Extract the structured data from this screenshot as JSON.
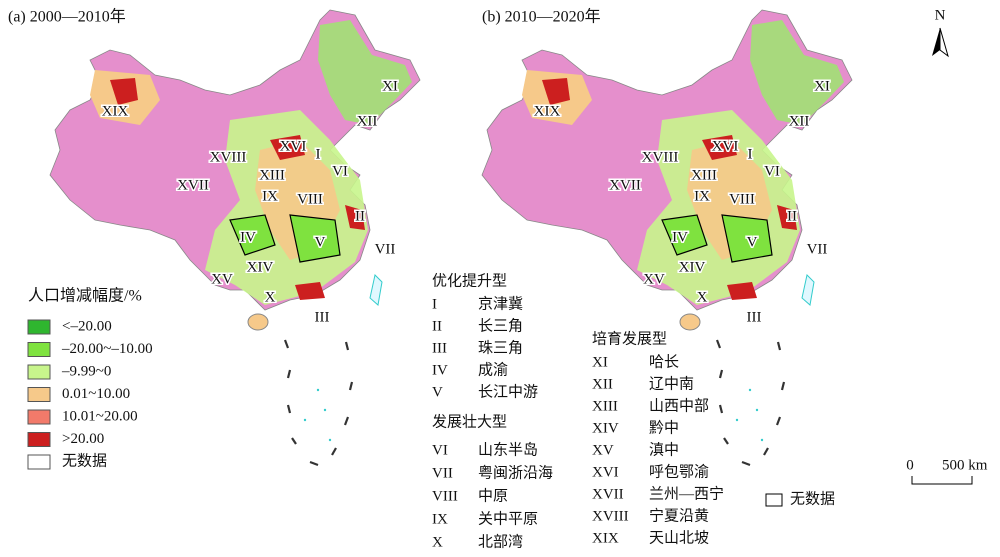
{
  "panels": [
    {
      "title": "(a) 2000—2010年",
      "region_labels": [
        "XIX",
        "XI",
        "XII",
        "XVI",
        "I",
        "XVIII",
        "XIII",
        "VI",
        "XVII",
        "IX",
        "VIII",
        "II",
        "IV",
        "V",
        "VII",
        "XIV",
        "XV",
        "X",
        "III"
      ]
    },
    {
      "title": "(b) 2010—2020年",
      "region_labels": [
        "XIX",
        "XI",
        "XII",
        "XVI",
        "I",
        "XVIII",
        "XIII",
        "VI",
        "XVII",
        "IX",
        "VIII",
        "II",
        "IV",
        "V",
        "VII",
        "XIV",
        "XV",
        "X",
        "III"
      ]
    }
  ],
  "legend": {
    "title": "人口增减幅度/%",
    "items": [
      {
        "label": "<–20.00",
        "color": "#2fb62f"
      },
      {
        "label": "–20.00~–10.00",
        "color": "#7fe23f"
      },
      {
        "label": "–9.99~0",
        "color": "#c8f58c"
      },
      {
        "label": "0.01~10.00",
        "color": "#f6c98a"
      },
      {
        "label": "10.01~20.00",
        "color": "#f27a6a"
      },
      {
        "label": ">20.00",
        "color": "#cc1f1f"
      },
      {
        "label": "无数据",
        "color": "#ffffff"
      }
    ]
  },
  "groups": [
    {
      "title": "优化提升型",
      "items": [
        {
          "numeral": "I",
          "name": "京津冀"
        },
        {
          "numeral": "II",
          "name": "长三角"
        },
        {
          "numeral": "III",
          "name": "珠三角"
        },
        {
          "numeral": "IV",
          "name": "成渝"
        },
        {
          "numeral": "V",
          "name": "长江中游"
        }
      ]
    },
    {
      "title": "发展壮大型",
      "items": [
        {
          "numeral": "VI",
          "name": "山东半岛"
        },
        {
          "numeral": "VII",
          "name": "粤闽浙沿海"
        },
        {
          "numeral": "VIII",
          "name": "中原"
        },
        {
          "numeral": "IX",
          "name": "关中平原"
        },
        {
          "numeral": "X",
          "name": "北部湾"
        }
      ]
    },
    {
      "title": "培育发展型",
      "items": [
        {
          "numeral": "XI",
          "name": "哈长"
        },
        {
          "numeral": "XII",
          "name": "辽中南"
        },
        {
          "numeral": "XIII",
          "name": "山西中部"
        },
        {
          "numeral": "XIV",
          "name": "黔中"
        },
        {
          "numeral": "XV",
          "name": "滇中"
        },
        {
          "numeral": "XVI",
          "name": "呼包鄂渝"
        },
        {
          "numeral": "XVII",
          "name": "兰州—西宁"
        },
        {
          "numeral": "XVIII",
          "name": "宁夏沿黄"
        },
        {
          "numeral": "XIX",
          "name": "天山北坡"
        }
      ]
    }
  ],
  "north": "N",
  "scale": {
    "zero": "0",
    "label": "500 km"
  },
  "nodata_note": "无数据"
}
